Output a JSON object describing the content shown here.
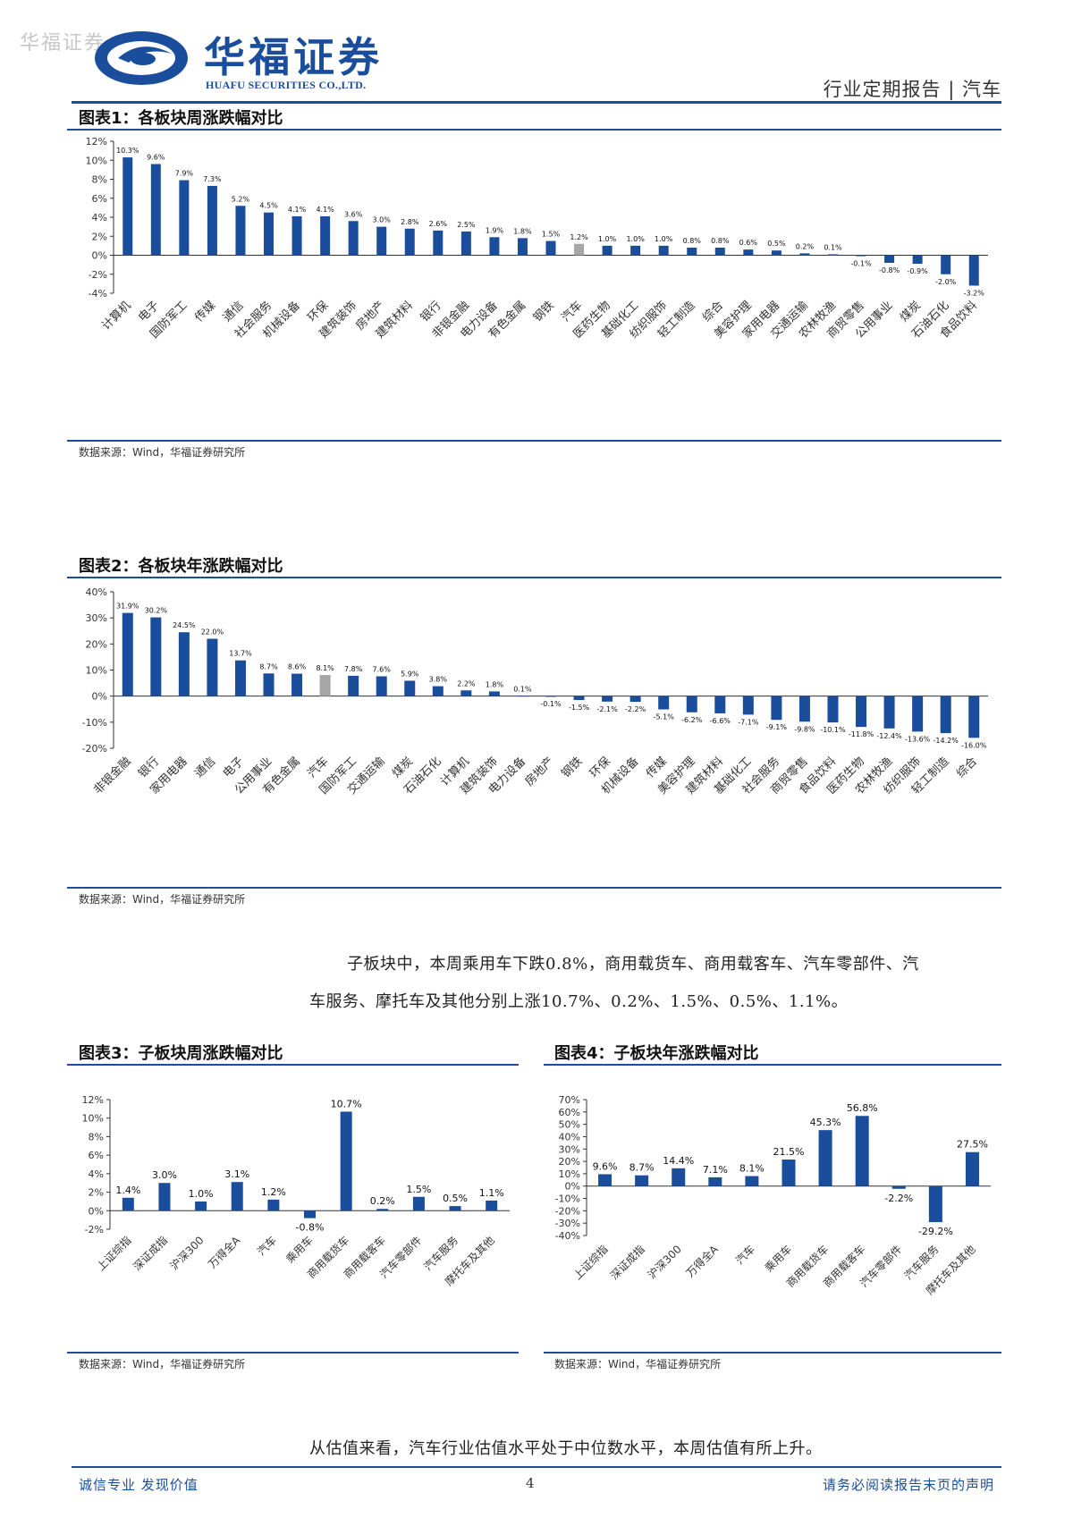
{
  "header": {
    "watermark": "华福证券",
    "brand_cn": "华福证券",
    "brand_en": "HUAFU SECURITIES CO.,LTD.",
    "report_type": "行业定期报告 | 汽车",
    "brand_color": "#1a4d9c"
  },
  "colors": {
    "bar": "#1a4d9c",
    "highlight": "#a6a6a6"
  },
  "source_text": "数据来源：Wind，华福证券研究所",
  "paragraph1": {
    "line1": "子板块中，本周乘用车下跌0.8%，商用载货车、商用载客车、汽车零部件、汽",
    "line2": "车服务、摩托车及其他分别上涨10.7%、0.2%、1.5%、0.5%、1.1%。"
  },
  "paragraph2": "从估值来看，汽车行业估值水平处于中位数水平，本周估值有所上升。",
  "footer": {
    "left": "诚信专业  发现价值",
    "page": "4",
    "right": "请务必阅读报告末页的声明"
  },
  "chart_data": [
    {
      "id": "fig1",
      "title": "图表1：各板块周涨跌幅对比",
      "type": "bar",
      "ylim": [
        -4,
        12
      ],
      "yticks": [
        -4,
        -2,
        0,
        2,
        4,
        6,
        8,
        10,
        12
      ],
      "highlight": "汽车",
      "categories": [
        "计算机",
        "电子",
        "国防军工",
        "传媒",
        "通信",
        "社会服务",
        "机械设备",
        "环保",
        "建筑装饰",
        "房地产",
        "建筑材料",
        "银行",
        "非银金融",
        "电力设备",
        "有色金属",
        "钢铁",
        "汽车",
        "医药生物",
        "基础化工",
        "纺织服饰",
        "轻工制造",
        "综合",
        "美容护理",
        "家用电器",
        "交通运输",
        "农林牧渔",
        "商贸零售",
        "公用事业",
        "煤炭",
        "石油石化",
        "食品饮料"
      ],
      "values": [
        10.3,
        9.6,
        7.9,
        7.3,
        5.2,
        4.5,
        4.1,
        4.1,
        3.6,
        3.0,
        2.8,
        2.6,
        2.5,
        1.9,
        1.8,
        1.5,
        1.2,
        1.0,
        1.0,
        1.0,
        0.8,
        0.8,
        0.6,
        0.5,
        0.2,
        0.1,
        -0.1,
        -0.8,
        -0.9,
        -2.0,
        -3.2
      ]
    },
    {
      "id": "fig2",
      "title": "图表2：各板块年涨跌幅对比",
      "type": "bar",
      "ylim": [
        -20,
        40
      ],
      "yticks": [
        -20,
        -10,
        0,
        10,
        20,
        30,
        40
      ],
      "highlight": "汽车",
      "categories": [
        "非银金融",
        "银行",
        "家用电器",
        "通信",
        "电子",
        "公用事业",
        "有色金属",
        "汽车",
        "国防军工",
        "交通运输",
        "煤炭",
        "石油石化",
        "计算机",
        "建筑装饰",
        "电力设备",
        "房地产",
        "钢铁",
        "环保",
        "机械设备",
        "传媒",
        "美容护理",
        "建筑材料",
        "基础化工",
        "社会服务",
        "商贸零售",
        "食品饮料",
        "医药生物",
        "农林牧渔",
        "纺织服饰",
        "轻工制造",
        "综合"
      ],
      "values": [
        31.9,
        30.2,
        24.5,
        22.0,
        13.7,
        8.7,
        8.6,
        8.1,
        7.8,
        7.6,
        5.9,
        3.8,
        2.2,
        1.8,
        0.1,
        -0.1,
        -1.5,
        -2.1,
        -2.2,
        -5.1,
        -6.2,
        -6.6,
        -7.1,
        -9.1,
        -9.8,
        -10.1,
        -11.8,
        -12.4,
        -13.6,
        -14.2,
        -16.0
      ]
    },
    {
      "id": "fig3",
      "title": "图表3：子板块周涨跌幅对比",
      "type": "bar",
      "ylim": [
        -2,
        12
      ],
      "yticks": [
        -2,
        0,
        2,
        4,
        6,
        8,
        10,
        12
      ],
      "categories": [
        "上证综指",
        "深证成指",
        "沪深300",
        "万得全A",
        "汽车",
        "乘用车",
        "商用载货车",
        "商用载客车",
        "汽车零部件",
        "汽车服务",
        "摩托车及其他"
      ],
      "values": [
        1.4,
        3.0,
        1.0,
        3.1,
        1.2,
        -0.8,
        10.7,
        0.2,
        1.5,
        0.5,
        1.1
      ]
    },
    {
      "id": "fig4",
      "title": "图表4：子板块年涨跌幅对比",
      "type": "bar",
      "ylim": [
        -40,
        70
      ],
      "yticks": [
        -40,
        -30,
        -20,
        -10,
        0,
        10,
        20,
        30,
        40,
        50,
        60,
        70
      ],
      "categories": [
        "上证综指",
        "深证成指",
        "沪深300",
        "万得全A",
        "汽车",
        "乘用车",
        "商用载货车",
        "商用载客车",
        "汽车零部件",
        "汽车服务",
        "摩托车及其他"
      ],
      "values": [
        9.6,
        8.7,
        14.4,
        7.1,
        8.1,
        21.5,
        45.3,
        56.8,
        -2.2,
        -29.2,
        27.5
      ]
    }
  ]
}
